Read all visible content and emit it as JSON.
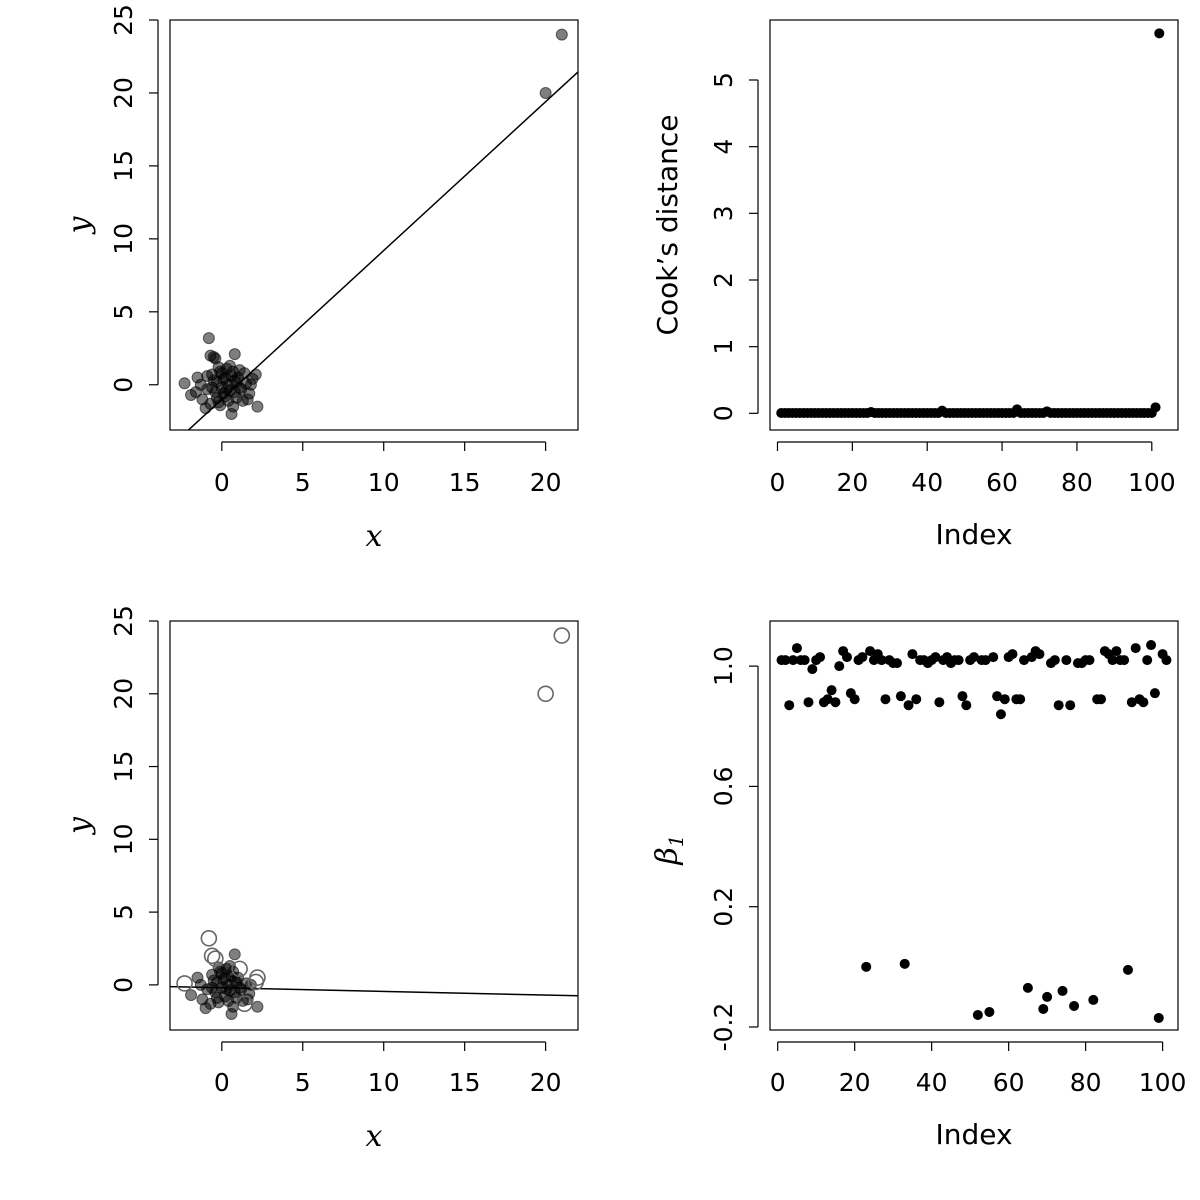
{
  "chart_data": [
    {
      "type": "scatter",
      "xlabel": "x",
      "ylabel": "y",
      "xlim": [
        -3.2,
        22
      ],
      "ylim": [
        -3.1,
        25
      ],
      "xticks": [
        0,
        5,
        10,
        15,
        20
      ],
      "yticks": [
        0,
        5,
        10,
        15,
        20,
        25
      ],
      "grid": false,
      "marker": "filled-translucent",
      "outliers": [
        [
          20,
          20
        ],
        [
          21,
          24
        ]
      ],
      "fit_line": {
        "intercept": -1.0,
        "slope": 1.02
      },
      "series": [
        {
          "values": [
            [
              -0.8,
              3.2
            ],
            [
              -0.7,
              2.0
            ],
            [
              -0.5,
              1.9
            ],
            [
              -0.4,
              1.8
            ],
            [
              0.8,
              2.1
            ],
            [
              1.1,
              1.0
            ],
            [
              -2.3,
              0.1
            ],
            [
              -1.5,
              0.5
            ],
            [
              -1.9,
              -0.7
            ],
            [
              -1.2,
              -1.0
            ],
            [
              -1.0,
              -1.6
            ],
            [
              -0.9,
              -0.3
            ],
            [
              -0.6,
              0.7
            ],
            [
              -0.4,
              -0.5
            ],
            [
              -0.3,
              0.2
            ],
            [
              -0.2,
              -1.2
            ],
            [
              -0.1,
              0.9
            ],
            [
              0.0,
              -0.2
            ],
            [
              0.1,
              0.4
            ],
            [
              0.2,
              -0.8
            ],
            [
              0.3,
              1.1
            ],
            [
              0.4,
              0.0
            ],
            [
              0.5,
              -0.4
            ],
            [
              0.6,
              0.6
            ],
            [
              0.7,
              -1.5
            ],
            [
              0.8,
              0.3
            ],
            [
              0.9,
              -0.9
            ],
            [
              1.0,
              0.5
            ],
            [
              1.2,
              -0.3
            ],
            [
              1.3,
              -1.1
            ],
            [
              1.5,
              0.1
            ],
            [
              1.7,
              -0.6
            ],
            [
              1.9,
              0.4
            ],
            [
              2.1,
              0.7
            ],
            [
              2.2,
              -1.5
            ],
            [
              0.6,
              -2.0
            ],
            [
              -0.7,
              -1.3
            ],
            [
              0.2,
              0.5
            ],
            [
              -0.3,
              -0.9
            ],
            [
              0.5,
              1.3
            ],
            [
              1.1,
              -0.2
            ],
            [
              -1.3,
              0.0
            ],
            [
              0.0,
              0.8
            ],
            [
              0.3,
              -0.3
            ],
            [
              0.9,
              0.2
            ],
            [
              -0.5,
              0.3
            ],
            [
              1.4,
              0.8
            ],
            [
              -0.1,
              -1.4
            ],
            [
              0.7,
              0.9
            ],
            [
              1.6,
              -1.0
            ],
            [
              -0.2,
              1.2
            ],
            [
              0.4,
              -1.1
            ],
            [
              -1.6,
              -0.5
            ],
            [
              -0.9,
              0.6
            ],
            [
              0.1,
              -0.6
            ],
            [
              1.8,
              0.0
            ],
            [
              -0.6,
              -0.2
            ],
            [
              0.8,
              -0.5
            ]
          ]
        }
      ]
    },
    {
      "type": "scatter",
      "xlabel": "Index",
      "ylabel": "Cook’s distance",
      "xlim": [
        -2,
        107
      ],
      "ylim": [
        -0.25,
        5.9
      ],
      "xticks": [
        0,
        20,
        40,
        60,
        80,
        100
      ],
      "yticks": [
        0,
        1,
        2,
        3,
        4,
        5
      ],
      "grid": false,
      "marker": "filled",
      "baseline_value": 0.005,
      "baseline_range": [
        1,
        100
      ],
      "bumps": [
        [
          25,
          0.02
        ],
        [
          44,
          0.04
        ],
        [
          64,
          0.06
        ],
        [
          72,
          0.03
        ],
        [
          101,
          0.09
        ]
      ],
      "peak": [
        102,
        5.7
      ]
    },
    {
      "type": "scatter",
      "xlabel": "x",
      "ylabel": "y",
      "xlim": [
        -3.2,
        22
      ],
      "ylim": [
        -3.1,
        25
      ],
      "xticks": [
        0,
        5,
        10,
        15,
        20
      ],
      "yticks": [
        0,
        5,
        10,
        15,
        20,
        25
      ],
      "grid": false,
      "marker": "filled-and-open",
      "open_points": [
        [
          20,
          20
        ],
        [
          21,
          24
        ],
        [
          -0.8,
          3.2
        ],
        [
          -0.6,
          2.0
        ],
        [
          -2.3,
          0.1
        ],
        [
          2.2,
          0.5
        ],
        [
          2.1,
          0.2
        ],
        [
          1.1,
          1.1
        ],
        [
          1.4,
          -1.3
        ],
        [
          -0.4,
          1.8
        ]
      ],
      "fit_line": {
        "intercept": -0.2,
        "slope": -0.025
      },
      "series": [
        {
          "values": [
            [
              -1.5,
              0.5
            ],
            [
              -1.9,
              -0.7
            ],
            [
              -1.2,
              -1.0
            ],
            [
              -1.0,
              -1.6
            ],
            [
              -0.9,
              -0.3
            ],
            [
              -0.6,
              0.7
            ],
            [
              -0.4,
              -0.5
            ],
            [
              -0.3,
              0.2
            ],
            [
              -0.2,
              -1.2
            ],
            [
              -0.1,
              0.9
            ],
            [
              0.0,
              -0.2
            ],
            [
              0.1,
              0.4
            ],
            [
              0.2,
              -0.8
            ],
            [
              0.3,
              1.1
            ],
            [
              0.4,
              0.0
            ],
            [
              0.5,
              -0.4
            ],
            [
              0.6,
              0.6
            ],
            [
              0.7,
              -1.5
            ],
            [
              0.8,
              0.3
            ],
            [
              0.9,
              -0.9
            ],
            [
              1.0,
              0.5
            ],
            [
              1.2,
              -0.3
            ],
            [
              1.3,
              -1.1
            ],
            [
              1.5,
              0.1
            ],
            [
              1.7,
              -0.6
            ],
            [
              0.8,
              2.1
            ],
            [
              0.6,
              -2.0
            ],
            [
              -0.7,
              -1.3
            ],
            [
              0.2,
              0.5
            ],
            [
              -0.3,
              -0.9
            ],
            [
              0.5,
              1.3
            ],
            [
              1.1,
              -0.2
            ],
            [
              -1.3,
              0.0
            ],
            [
              0.0,
              0.8
            ],
            [
              0.3,
              -0.3
            ],
            [
              0.9,
              0.2
            ],
            [
              -0.5,
              0.3
            ],
            [
              0.7,
              0.9
            ],
            [
              1.6,
              -1.0
            ],
            [
              -0.2,
              1.2
            ],
            [
              0.4,
              -1.1
            ],
            [
              1.8,
              0.0
            ],
            [
              -0.6,
              -0.2
            ],
            [
              0.8,
              -0.5
            ],
            [
              2.2,
              -1.5
            ]
          ]
        }
      ]
    },
    {
      "type": "scatter",
      "xlabel": "Index",
      "ylabel": "β1",
      "xlim": [
        -2,
        104
      ],
      "ylim": [
        -0.21,
        1.15
      ],
      "xticks": [
        0,
        20,
        40,
        60,
        80,
        100
      ],
      "yticks": [
        -0.2,
        0.2,
        0.6,
        1.0
      ],
      "ytick_labels": [
        "-0.2",
        "0.2",
        "0.6",
        "1.0"
      ],
      "grid": false,
      "marker": "filled",
      "series": [
        {
          "values": [
            [
              1,
              1.02
            ],
            [
              2,
              1.02
            ],
            [
              3,
              0.87
            ],
            [
              4,
              1.02
            ],
            [
              5,
              1.06
            ],
            [
              6,
              1.02
            ],
            [
              7,
              1.02
            ],
            [
              8,
              0.88
            ],
            [
              9,
              0.99
            ],
            [
              10,
              1.02
            ],
            [
              11,
              1.03
            ],
            [
              12,
              0.88
            ],
            [
              13,
              0.89
            ],
            [
              14,
              0.92
            ],
            [
              15,
              0.88
            ],
            [
              16,
              1.0
            ],
            [
              17,
              1.05
            ],
            [
              18,
              1.03
            ],
            [
              19,
              0.91
            ],
            [
              20,
              0.89
            ],
            [
              21,
              1.02
            ],
            [
              22,
              1.03
            ],
            [
              23,
              0.0
            ],
            [
              24,
              1.05
            ],
            [
              25,
              1.02
            ],
            [
              26,
              1.04
            ],
            [
              27,
              1.02
            ],
            [
              28,
              0.89
            ],
            [
              29,
              1.02
            ],
            [
              30,
              1.01
            ],
            [
              31,
              1.01
            ],
            [
              32,
              0.9
            ],
            [
              33,
              0.01
            ],
            [
              34,
              0.87
            ],
            [
              35,
              1.04
            ],
            [
              36,
              0.89
            ],
            [
              37,
              1.02
            ],
            [
              38,
              1.02
            ],
            [
              39,
              1.01
            ],
            [
              40,
              1.02
            ],
            [
              41,
              1.03
            ],
            [
              42,
              0.88
            ],
            [
              43,
              1.02
            ],
            [
              44,
              1.03
            ],
            [
              45,
              1.01
            ],
            [
              46,
              1.02
            ],
            [
              47,
              1.02
            ],
            [
              48,
              0.9
            ],
            [
              49,
              0.87
            ],
            [
              50,
              1.02
            ],
            [
              51,
              1.03
            ],
            [
              52,
              -0.16
            ],
            [
              53,
              1.02
            ],
            [
              54,
              1.02
            ],
            [
              55,
              -0.15
            ],
            [
              56,
              1.03
            ],
            [
              57,
              0.9
            ],
            [
              58,
              0.84
            ],
            [
              59,
              0.89
            ],
            [
              60,
              1.03
            ],
            [
              61,
              1.04
            ],
            [
              62,
              0.89
            ],
            [
              63,
              0.89
            ],
            [
              64,
              1.02
            ],
            [
              65,
              -0.07
            ],
            [
              66,
              1.03
            ],
            [
              67,
              1.05
            ],
            [
              68,
              1.04
            ],
            [
              69,
              -0.14
            ],
            [
              70,
              -0.1
            ],
            [
              71,
              1.01
            ],
            [
              72,
              1.02
            ],
            [
              73,
              0.87
            ],
            [
              74,
              -0.08
            ],
            [
              75,
              1.02
            ],
            [
              76,
              0.87
            ],
            [
              77,
              -0.13
            ],
            [
              78,
              1.01
            ],
            [
              79,
              1.01
            ],
            [
              80,
              1.02
            ],
            [
              81,
              1.02
            ],
            [
              82,
              -0.11
            ],
            [
              83,
              0.89
            ],
            [
              84,
              0.89
            ],
            [
              85,
              1.05
            ],
            [
              86,
              1.04
            ],
            [
              87,
              1.02
            ],
            [
              88,
              1.05
            ],
            [
              89,
              1.02
            ],
            [
              90,
              1.02
            ],
            [
              91,
              -0.01
            ],
            [
              92,
              0.88
            ],
            [
              93,
              1.06
            ],
            [
              94,
              0.89
            ],
            [
              95,
              0.88
            ],
            [
              96,
              1.02
            ],
            [
              97,
              1.07
            ],
            [
              98,
              0.91
            ],
            [
              99,
              -0.17
            ],
            [
              100,
              1.04
            ],
            [
              101,
              1.02
            ]
          ]
        }
      ]
    }
  ]
}
